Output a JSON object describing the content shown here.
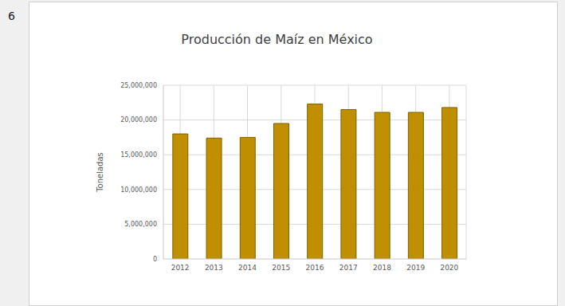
{
  "item_number": "6",
  "chart_data": {
    "type": "bar",
    "title": "Producción de Maíz en México",
    "y_label": "Toneladas",
    "categories": [
      "2012",
      "2013",
      "2014",
      "2015",
      "2016",
      "2017",
      "2018",
      "2019",
      "2020"
    ],
    "values": [
      18000000,
      17400000,
      17500000,
      19500000,
      22300000,
      21500000,
      21100000,
      21100000,
      21800000
    ],
    "color": "#bf8f00",
    "ylim": [
      0,
      25000000
    ],
    "yticks": [
      0,
      {
        "value": 5000000,
        "label": "5,000,000"
      },
      {
        "value": 10000000,
        "label": "10,000,000"
      },
      {
        "value": 15000000,
        "label": "15,000,000"
      },
      {
        "value": 20000000,
        "label": "20,000,000"
      },
      {
        "value": 25000000,
        "label": "25,000,000"
      }
    ],
    "grid": true
  }
}
